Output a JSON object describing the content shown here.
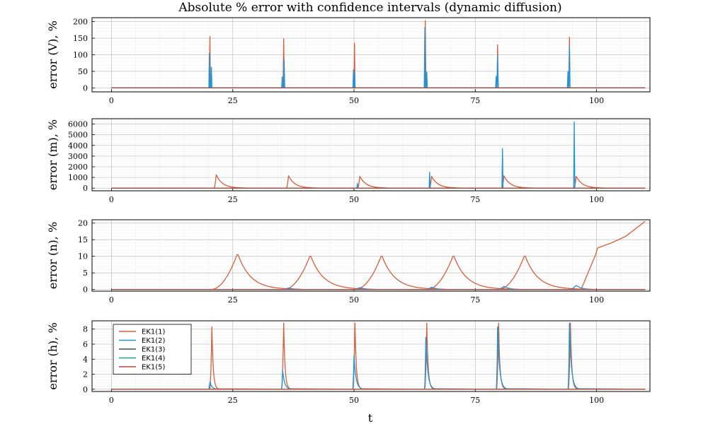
{
  "title": "Absolute % error with confidence intervals (dynamic diffusion)",
  "xlabel": "t",
  "legend": {
    "placement": "top-left of bottom panel",
    "entries": [
      {
        "label": "EK1(1)",
        "color": "#d45f3c"
      },
      {
        "label": "EK1(2)",
        "color": "#1f94d8"
      },
      {
        "label": "EK1(3)",
        "color": "#3a4f57"
      },
      {
        "label": "EK1(4)",
        "color": "#1aa68e"
      },
      {
        "label": "EK1(5)",
        "color": "#b8463a"
      }
    ]
  },
  "chart_data": [
    {
      "type": "line",
      "ylabel": "error (V), %",
      "xlim": [
        -4,
        111
      ],
      "ylim": [
        -12,
        212
      ],
      "xticks": [
        0,
        25,
        50,
        75,
        100
      ],
      "yticks": [
        0,
        50,
        100,
        150,
        200
      ],
      "grid": true,
      "series": [
        {
          "name": "EK1(1)",
          "color": "#d45f3c",
          "spikes": [
            [
              20.3,
              155
            ],
            [
              35.5,
              148
            ],
            [
              50.1,
              135
            ],
            [
              64.7,
              203
            ],
            [
              79.6,
              130
            ],
            [
              94.4,
              153
            ]
          ]
        },
        {
          "name": "EK1(2)",
          "color": "#1f94d8",
          "spikes": [
            [
              20.2,
              105
            ],
            [
              20.6,
              62
            ],
            [
              35.2,
              33
            ],
            [
              35.6,
              85
            ],
            [
              49.9,
              55
            ],
            [
              50.1,
              45
            ],
            [
              64.6,
              183
            ],
            [
              65.0,
              48
            ],
            [
              79.3,
              35
            ],
            [
              79.6,
              97
            ],
            [
              94.1,
              50
            ],
            [
              94.4,
              125
            ]
          ]
        },
        {
          "name": "EK1(3)",
          "color": "#3a4f57",
          "spikes": []
        },
        {
          "name": "EK1(4)",
          "color": "#1aa68e",
          "spikes": []
        },
        {
          "name": "EK1(5)",
          "color": "#b8463a",
          "spikes": []
        }
      ]
    },
    {
      "type": "line",
      "ylabel": "error (m), %",
      "xlim": [
        -4,
        111
      ],
      "ylim": [
        -250,
        6500
      ],
      "xticks": [
        0,
        25,
        50,
        75,
        100
      ],
      "yticks": [
        0,
        1000,
        2000,
        3000,
        4000,
        5000,
        6000
      ],
      "grid": true,
      "series": [
        {
          "name": "EK1(1)",
          "color": "#d45f3c",
          "peaks": [
            [
              21.6,
              1250
            ],
            [
              36.5,
              1150
            ],
            [
              51.2,
              1100
            ],
            [
              66.0,
              1100
            ],
            [
              80.9,
              1150
            ],
            [
              95.8,
              1100
            ]
          ]
        },
        {
          "name": "EK1(2)",
          "color": "#1f94d8",
          "spikes": [
            [
              50.7,
              450
            ],
            [
              65.6,
              1500
            ],
            [
              80.6,
              3700
            ],
            [
              95.4,
              6200
            ]
          ]
        },
        {
          "name": "EK1(3)",
          "color": "#3a4f57",
          "spikes": []
        },
        {
          "name": "EK1(4)",
          "color": "#1aa68e",
          "spikes": []
        },
        {
          "name": "EK1(5)",
          "color": "#b8463a",
          "spikes": []
        }
      ]
    },
    {
      "type": "line",
      "ylabel": "error (n), %",
      "xlim": [
        -4,
        111
      ],
      "ylim": [
        -0.5,
        21
      ],
      "xticks": [
        0,
        25,
        50,
        75,
        100
      ],
      "yticks": [
        0,
        5,
        10,
        15,
        20
      ],
      "grid": true,
      "series": [
        {
          "name": "EK1(1)",
          "color": "#d45f3c",
          "peaks": [
            [
              26.0,
              10.9
            ],
            [
              41.0,
              10.4
            ],
            [
              55.7,
              10.4
            ],
            [
              70.5,
              10.4
            ],
            [
              85.2,
              10.4
            ]
          ],
          "tail": [
            [
              99.8,
              10.5
            ],
            [
              100.2,
              12.5
            ],
            [
              103,
              14
            ],
            [
              106,
              16
            ],
            [
              110,
              20.5
            ]
          ]
        },
        {
          "name": "EK1(2)",
          "color": "#1f94d8",
          "bumps": [
            [
              36.5,
              0.5
            ],
            [
              51.2,
              0.6
            ],
            [
              66.0,
              0.7
            ],
            [
              80.9,
              1.0
            ],
            [
              95.8,
              1.3
            ]
          ]
        },
        {
          "name": "EK1(3)",
          "color": "#3a4f57",
          "bumps": []
        },
        {
          "name": "EK1(4)",
          "color": "#1aa68e",
          "bumps": []
        },
        {
          "name": "EK1(5)",
          "color": "#b8463a",
          "bumps": []
        }
      ]
    },
    {
      "type": "line",
      "ylabel": "error (h), %",
      "xlim": [
        -4,
        111
      ],
      "ylim": [
        -0.3,
        9.1
      ],
      "xticks": [
        0,
        25,
        50,
        75,
        100
      ],
      "yticks": [
        0,
        2,
        4,
        6,
        8
      ],
      "grid": true,
      "series": [
        {
          "name": "EK1(1)",
          "color": "#d45f3c",
          "peaks": [
            [
              20.7,
              8.3
            ],
            [
              35.5,
              8.8
            ],
            [
              50.2,
              8.8
            ],
            [
              65.0,
              8.8
            ],
            [
              79.8,
              8.8
            ],
            [
              94.6,
              8.8
            ]
          ]
        },
        {
          "name": "EK1(2)",
          "color": "#1f94d8",
          "peaks": [
            [
              20.3,
              1.0
            ],
            [
              35.3,
              2.5
            ],
            [
              50.0,
              4.5
            ],
            [
              64.8,
              6.9
            ],
            [
              79.6,
              8.3
            ],
            [
              94.4,
              8.8
            ]
          ]
        },
        {
          "name": "EK1(3)",
          "color": "#3a4f57",
          "peaks": []
        },
        {
          "name": "EK1(4)",
          "color": "#1aa68e",
          "peaks": []
        },
        {
          "name": "EK1(5)",
          "color": "#b8463a",
          "peaks": []
        }
      ]
    }
  ]
}
